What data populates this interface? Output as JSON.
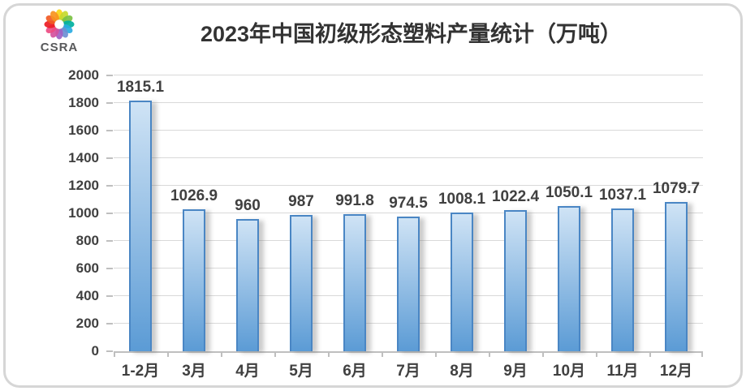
{
  "logo": {
    "text": "CSRA"
  },
  "chart_data": {
    "type": "bar",
    "title": "2023年中国初级形态塑料产量统计（万吨）",
    "unit": "万吨",
    "categories": [
      "1-2月",
      "3月",
      "4月",
      "5月",
      "6月",
      "7月",
      "8月",
      "9月",
      "10月",
      "11月",
      "12月"
    ],
    "values": [
      1815.1,
      1026.9,
      960,
      987,
      991.8,
      974.5,
      1008.1,
      1022.4,
      1050.1,
      1037.1,
      1079.7
    ],
    "value_labels": [
      "1815.1",
      "1026.9",
      "960",
      "987",
      "991.8",
      "974.5",
      "1008.1",
      "1022.4",
      "1050.1",
      "1037.1",
      "1079.7"
    ],
    "xlabel": "",
    "ylabel": "",
    "ylim": [
      0,
      2000
    ],
    "ytick_step": 200,
    "yticks": [
      0,
      200,
      400,
      600,
      800,
      1000,
      1200,
      1400,
      1600,
      1800,
      2000
    ],
    "grid": true,
    "legend": "none",
    "colors": {
      "bar_fill_top": "#cfe3f5",
      "bar_fill_bottom": "#5b9bd5",
      "bar_border": "#4a86c4",
      "label_text": "#404040",
      "grid_line": "#d9d9d9",
      "axis_line": "#bfbfbf",
      "title_text": "#333333",
      "logo_text": "#58595b"
    }
  }
}
